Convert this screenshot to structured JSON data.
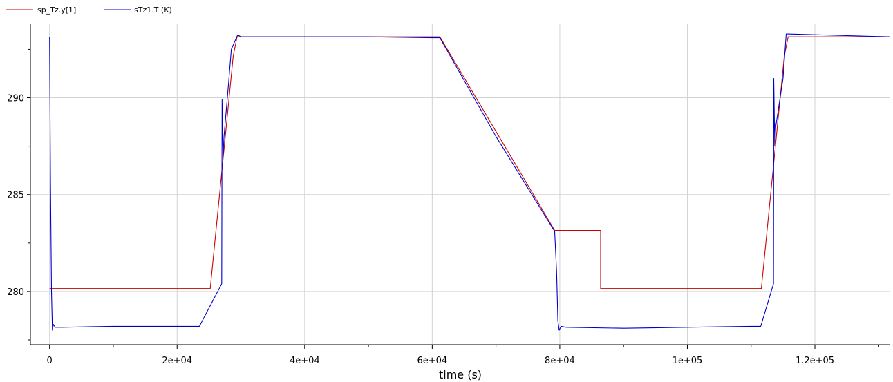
{
  "chart_data": {
    "type": "line",
    "xlabel": "time (s)",
    "ylabel": "",
    "xlim": [
      -3000,
      131700
    ],
    "ylim": [
      277.25,
      293.8
    ],
    "xticks": [
      {
        "value": 0,
        "label": "0"
      },
      {
        "value": 20000,
        "label": "2e+04"
      },
      {
        "value": 40000,
        "label": "4e+04"
      },
      {
        "value": 60000,
        "label": "6e+04"
      },
      {
        "value": 80000,
        "label": "8e+04"
      },
      {
        "value": 100000,
        "label": "1e+05"
      },
      {
        "value": 120000,
        "label": "1.2e+05"
      }
    ],
    "xminor": [
      10000,
      30000,
      50000,
      70000,
      90000,
      110000,
      130000
    ],
    "yticks": [
      {
        "value": 280,
        "label": "280"
      },
      {
        "value": 285,
        "label": "285"
      },
      {
        "value": 290,
        "label": "290"
      }
    ],
    "yminor": [
      277.5,
      282.5,
      287.5,
      292.5
    ],
    "grid": true,
    "legend_position": "top-left",
    "series": [
      {
        "name": "sp_Tz.y[1]",
        "color": "#cc0000",
        "x": [
          0,
          25200,
          28800,
          29400,
          61200,
          79200,
          79300,
          86400,
          86401,
          111600,
          115200,
          115800,
          131700
        ],
        "y": [
          280.15,
          280.15,
          292.15,
          293.15,
          293.15,
          283.15,
          283.15,
          283.15,
          280.15,
          280.15,
          292.15,
          293.15,
          293.15
        ]
      },
      {
        "name": "sTz1.T (K)",
        "color": "#0000cc",
        "x": [
          0,
          150,
          300,
          450,
          600,
          900,
          2000,
          10000,
          20000,
          23500,
          27000,
          27050,
          27200,
          27350,
          28000,
          28500,
          29500,
          30000,
          40000,
          50000,
          60000,
          61200,
          70000,
          79200,
          79500,
          79700,
          79900,
          80200,
          81000,
          90000,
          100000,
          110000,
          111500,
          113500,
          113550,
          113700,
          113850,
          115000,
          115500,
          131700
        ],
        "y": [
          293.15,
          285.5,
          280.0,
          278.0,
          278.3,
          278.15,
          278.15,
          278.2,
          278.2,
          278.2,
          280.4,
          289.9,
          287.0,
          288.0,
          290.5,
          292.5,
          293.25,
          293.15,
          293.15,
          293.15,
          293.1,
          293.1,
          288.0,
          283.1,
          281.0,
          278.5,
          278.0,
          278.2,
          278.15,
          278.1,
          278.15,
          278.2,
          278.2,
          280.4,
          291.0,
          287.5,
          288.5,
          291.0,
          293.3,
          293.15
        ]
      }
    ]
  }
}
